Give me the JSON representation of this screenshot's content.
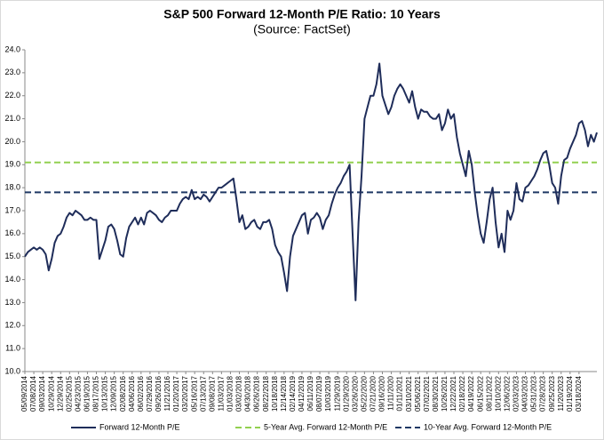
{
  "chart_data": {
    "type": "line",
    "title": "S&P 500 Forward 12-Month P/E Ratio: 10 Years",
    "subtitle": "(Source: FactSet)",
    "categories": [
      "05/09/2014",
      null,
      null,
      "07/08/2014",
      null,
      null,
      "09/03/2014",
      null,
      null,
      "10/29/2014",
      null,
      null,
      "12/29/2014",
      null,
      null,
      "02/25/2015",
      null,
      null,
      "04/23/2015",
      null,
      null,
      "06/19/2015",
      null,
      null,
      "08/17/2015",
      null,
      null,
      "10/13/2015",
      null,
      null,
      "12/09/2015",
      null,
      null,
      "02/08/2016",
      null,
      null,
      "04/06/2016",
      null,
      null,
      "06/02/2016",
      null,
      null,
      "07/29/2016",
      null,
      null,
      "09/26/2016",
      null,
      null,
      "11/21/2016",
      null,
      null,
      "01/20/2017",
      null,
      null,
      "03/20/2017",
      null,
      null,
      "05/16/2017",
      null,
      null,
      "07/13/2017",
      null,
      null,
      "09/08/2017",
      null,
      null,
      "11/03/2017",
      null,
      null,
      "01/03/2018",
      null,
      null,
      "03/02/2018",
      null,
      null,
      "04/30/2018",
      null,
      null,
      "06/26/2018",
      null,
      null,
      "08/22/2018",
      null,
      null,
      "10/18/2018",
      null,
      null,
      "12/14/2018",
      null,
      null,
      "02/14/2019",
      null,
      null,
      "04/12/2019",
      null,
      null,
      "06/11/2019",
      null,
      null,
      "08/07/2019",
      null,
      null,
      "10/03/2019",
      null,
      null,
      "11/29/2019",
      null,
      null,
      "01/29/2020",
      null,
      null,
      "03/26/2020",
      null,
      null,
      "05/22/2020",
      null,
      null,
      "07/21/2020",
      null,
      null,
      "09/16/2020",
      null,
      null,
      "11/11/2020",
      null,
      null,
      "01/11/2021",
      null,
      null,
      "03/10/2021",
      null,
      null,
      "05/06/2021",
      null,
      null,
      "07/02/2021",
      null,
      null,
      "08/30/2021",
      null,
      null,
      "10/26/2021",
      null,
      null,
      "12/22/2021",
      null,
      null,
      "02/18/2022",
      null,
      null,
      "04/19/2022",
      null,
      null,
      "06/15/2022",
      null,
      null,
      "08/11/2022",
      null,
      null,
      "10/10/2022",
      null,
      null,
      "12/06/2022",
      null,
      null,
      "02/03/2023",
      null,
      null,
      "04/03/2023",
      null,
      null,
      "05/31/2023",
      null,
      null,
      "07/28/2023",
      null,
      null,
      "09/25/2023",
      null,
      null,
      "11/20/2023",
      null,
      null,
      "01/19/2024",
      null,
      null,
      "03/18/2024",
      null,
      null,
      null,
      null,
      null,
      null
    ],
    "series": [
      {
        "name": "Forward 12-Month P/E",
        "color": "#1f2d5a",
        "values": [
          15.0,
          15.2,
          15.3,
          15.4,
          15.3,
          15.4,
          15.3,
          15.1,
          14.4,
          14.9,
          15.6,
          15.9,
          16.0,
          16.3,
          16.7,
          16.9,
          16.8,
          17.0,
          16.9,
          16.8,
          16.6,
          16.6,
          16.7,
          16.6,
          16.6,
          14.9,
          15.3,
          15.7,
          16.3,
          16.4,
          16.2,
          15.7,
          15.1,
          15.0,
          15.8,
          16.3,
          16.5,
          16.7,
          16.4,
          16.7,
          16.4,
          16.9,
          17.0,
          16.9,
          16.8,
          16.6,
          16.5,
          16.7,
          16.8,
          17.0,
          17.0,
          17.0,
          17.3,
          17.5,
          17.6,
          17.5,
          17.9,
          17.5,
          17.6,
          17.5,
          17.7,
          17.6,
          17.4,
          17.6,
          17.8,
          18.0,
          18.0,
          18.1,
          18.2,
          18.3,
          18.4,
          17.5,
          16.5,
          16.8,
          16.2,
          16.3,
          16.5,
          16.6,
          16.3,
          16.2,
          16.5,
          16.5,
          16.6,
          16.2,
          15.5,
          15.2,
          15.0,
          14.3,
          13.5,
          15.0,
          15.9,
          16.2,
          16.5,
          16.8,
          16.9,
          16.0,
          16.6,
          16.7,
          16.9,
          16.7,
          16.2,
          16.6,
          16.8,
          17.3,
          17.7,
          18.0,
          18.2,
          18.5,
          18.7,
          19.0,
          16.0,
          13.1,
          16.5,
          18.5,
          21.0,
          21.5,
          22.0,
          22.0,
          22.5,
          23.4,
          22.0,
          21.6,
          21.2,
          21.5,
          22.0,
          22.3,
          22.5,
          22.3,
          22.0,
          21.7,
          22.2,
          21.5,
          21.0,
          21.4,
          21.3,
          21.3,
          21.1,
          21.0,
          21.0,
          21.2,
          20.5,
          20.8,
          21.4,
          21.0,
          21.2,
          20.2,
          19.5,
          19.0,
          18.5,
          19.6,
          19.0,
          17.8,
          16.8,
          16.0,
          15.6,
          16.5,
          17.5,
          18.0,
          16.5,
          15.4,
          16.0,
          15.2,
          17.0,
          16.6,
          17.0,
          18.2,
          17.5,
          17.4,
          18.0,
          18.1,
          18.3,
          18.5,
          18.8,
          19.2,
          19.5,
          19.6,
          19.0,
          18.2,
          18.0,
          17.3,
          18.5,
          19.2,
          19.3,
          19.7,
          20.0,
          20.3,
          20.8,
          20.9,
          20.5,
          19.8,
          20.3,
          20.0,
          20.4
        ]
      }
    ],
    "reference_lines": [
      {
        "name": "5-Year Avg. Forward 12-Month P/E",
        "value": 19.1,
        "color": "#92d050"
      },
      {
        "name": "10-Year Avg. Forward 12-Month P/E",
        "value": 17.8,
        "color": "#1f3864"
      }
    ],
    "ylim": [
      10,
      24
    ],
    "yticks": [
      {
        "value": 10,
        "label": "10.0"
      },
      {
        "value": 11,
        "label": "11.0"
      },
      {
        "value": 12,
        "label": "12.0"
      },
      {
        "value": 13,
        "label": "13.0"
      },
      {
        "value": 14,
        "label": "14.0"
      },
      {
        "value": 15,
        "label": "15.0"
      },
      {
        "value": 16,
        "label": "16.0"
      },
      {
        "value": 17,
        "label": "17.0"
      },
      {
        "value": 18,
        "label": "18.0"
      },
      {
        "value": 19,
        "label": "19.0"
      },
      {
        "value": 20,
        "label": "20.0"
      },
      {
        "value": 21,
        "label": "21.0"
      },
      {
        "value": 22,
        "label": "22.0"
      },
      {
        "value": 23,
        "label": "23.0"
      },
      {
        "value": 24,
        "label": "24.0"
      }
    ],
    "grid": false
  }
}
